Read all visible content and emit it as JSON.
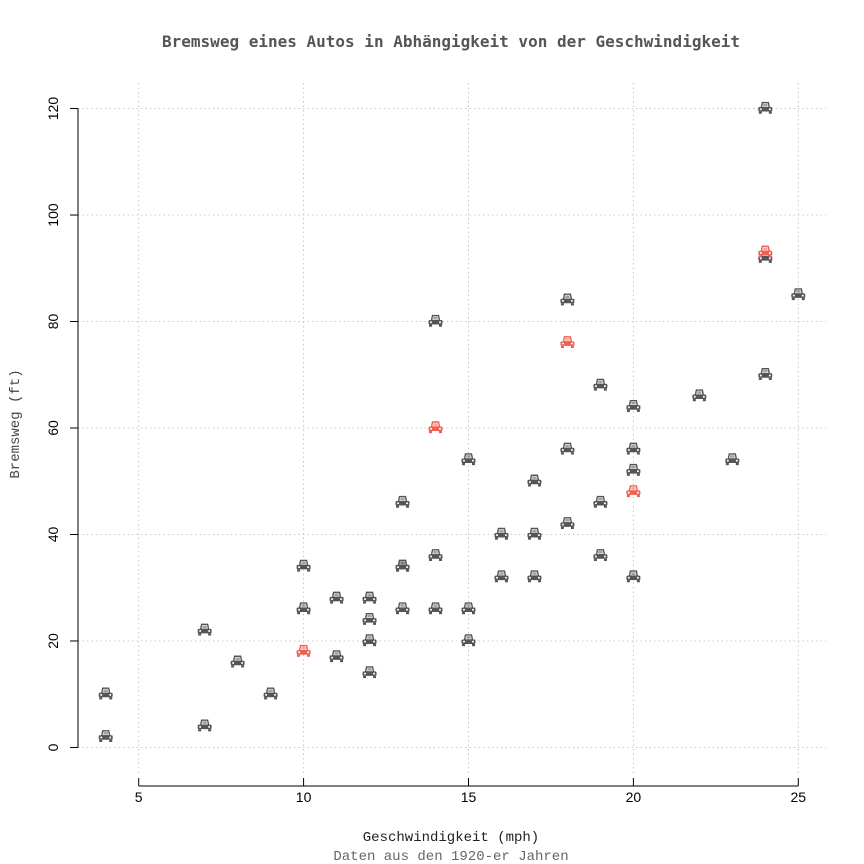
{
  "chart_data": {
    "type": "scatter",
    "title": "Bremsweg eines Autos in Abhängigkeit von der Geschwindigkeit",
    "xlabel": "Geschwindigkeit (mph)",
    "ylabel": "Bremsweg (ft)",
    "subtitle": "Daten aus den 1920-er Jahren",
    "xlim": [
      3.16,
      25.84
    ],
    "ylim": [
      -4.8,
      124.8
    ],
    "xticks": [
      5,
      10,
      15,
      20,
      25
    ],
    "yticks": [
      0,
      20,
      40,
      60,
      80,
      100,
      120
    ],
    "grid": true,
    "marker": "car-icon",
    "colors": {
      "normal": "#555555",
      "highlight": "#f06050"
    },
    "points": [
      {
        "x": 4,
        "y": 2
      },
      {
        "x": 4,
        "y": 10
      },
      {
        "x": 7,
        "y": 4
      },
      {
        "x": 7,
        "y": 22
      },
      {
        "x": 8,
        "y": 16
      },
      {
        "x": 9,
        "y": 10
      },
      {
        "x": 10,
        "y": 18,
        "highlight": true
      },
      {
        "x": 10,
        "y": 26
      },
      {
        "x": 10,
        "y": 34
      },
      {
        "x": 11,
        "y": 17
      },
      {
        "x": 11,
        "y": 28
      },
      {
        "x": 12,
        "y": 14
      },
      {
        "x": 12,
        "y": 20
      },
      {
        "x": 12,
        "y": 24
      },
      {
        "x": 12,
        "y": 28
      },
      {
        "x": 13,
        "y": 26
      },
      {
        "x": 13,
        "y": 34
      },
      {
        "x": 13,
        "y": 34
      },
      {
        "x": 13,
        "y": 46
      },
      {
        "x": 14,
        "y": 26
      },
      {
        "x": 14,
        "y": 36
      },
      {
        "x": 14,
        "y": 60,
        "highlight": true
      },
      {
        "x": 14,
        "y": 80
      },
      {
        "x": 15,
        "y": 20
      },
      {
        "x": 15,
        "y": 26
      },
      {
        "x": 15,
        "y": 54
      },
      {
        "x": 16,
        "y": 32
      },
      {
        "x": 16,
        "y": 40
      },
      {
        "x": 17,
        "y": 32
      },
      {
        "x": 17,
        "y": 40
      },
      {
        "x": 17,
        "y": 50
      },
      {
        "x": 18,
        "y": 42
      },
      {
        "x": 18,
        "y": 56
      },
      {
        "x": 18,
        "y": 76,
        "highlight": true
      },
      {
        "x": 18,
        "y": 84
      },
      {
        "x": 19,
        "y": 36
      },
      {
        "x": 19,
        "y": 46
      },
      {
        "x": 19,
        "y": 68
      },
      {
        "x": 20,
        "y": 32
      },
      {
        "x": 20,
        "y": 48,
        "highlight": true
      },
      {
        "x": 20,
        "y": 52
      },
      {
        "x": 20,
        "y": 56
      },
      {
        "x": 20,
        "y": 64
      },
      {
        "x": 22,
        "y": 66
      },
      {
        "x": 23,
        "y": 54
      },
      {
        "x": 24,
        "y": 70
      },
      {
        "x": 24,
        "y": 92
      },
      {
        "x": 24,
        "y": 93,
        "highlight": true
      },
      {
        "x": 24,
        "y": 120
      },
      {
        "x": 25,
        "y": 85
      }
    ]
  }
}
